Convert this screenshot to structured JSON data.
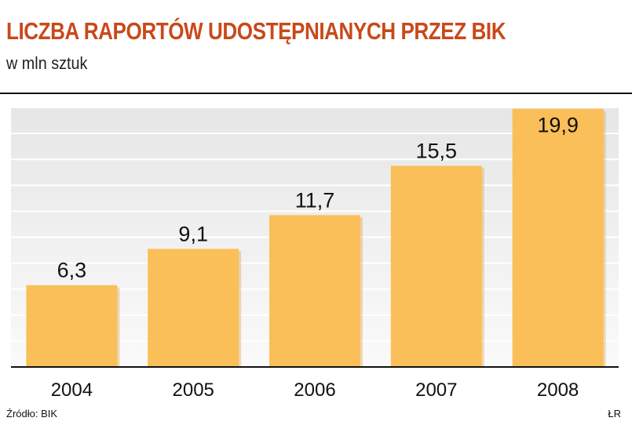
{
  "header": {
    "title": "LICZBA RAPORTÓW UDOSTĘPNIANYCH PRZEZ BIK",
    "subtitle": "w mln sztuk"
  },
  "footer": {
    "source": "Źródło: BIK",
    "credit": "ŁR"
  },
  "colors": {
    "title": "#c8491a",
    "bar": "#fbbf59",
    "bar_shadow": "#d49a3a",
    "plot_bg_top": "#e6e6e6",
    "plot_bg_bottom": "#fafafa",
    "gridline": "#ffffff",
    "axis": "#111111"
  },
  "chart_data": {
    "type": "bar",
    "title": "LICZBA RAPORTÓW UDOSTĘPNIANYCH PRZEZ BIK",
    "subtitle": "w mln sztuk",
    "categories": [
      "2004",
      "2005",
      "2006",
      "2007",
      "2008"
    ],
    "values": [
      6.3,
      9.1,
      11.7,
      15.5,
      19.9
    ],
    "value_labels": [
      "6,3",
      "9,1",
      "11,7",
      "15,5",
      "19,9"
    ],
    "ylim": [
      0,
      20
    ],
    "grid": true,
    "y_tick_labels_shown": false,
    "legend": "none"
  }
}
